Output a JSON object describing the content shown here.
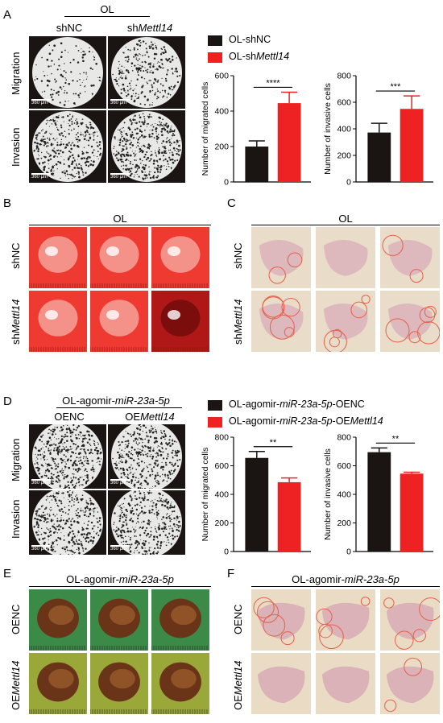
{
  "panels": {
    "A": {
      "label": "A",
      "group_title": "OL",
      "col_labels": [
        "shNC",
        "sh",
        "Mettl14"
      ],
      "row_labels": [
        "Migration",
        "Invasion"
      ],
      "scale_text": "360 μm",
      "legend": [
        {
          "text": "OL-shNC",
          "color": "#1a1412"
        },
        {
          "prefix": "OL-sh",
          "italic": "Mettl14",
          "color": "#ee2222"
        }
      ]
    },
    "B": {
      "label": "B",
      "group_title": "OL",
      "row_labels": [
        "shNC",
        "sh",
        "Mettl14"
      ]
    },
    "C": {
      "label": "C",
      "group_title": "OL",
      "row_labels": [
        "shNC",
        "sh",
        "Mettl14"
      ]
    },
    "D": {
      "label": "D",
      "group_title_prefix": "OL-agomir-",
      "group_title_italic": "miR-23a-5p",
      "col_labels": [
        "OENC",
        "OE",
        "Mettl14"
      ],
      "row_labels": [
        "Migration",
        "Invasion"
      ],
      "scale_text": "360 μm",
      "legend": [
        {
          "prefix": "OL-agomir-",
          "italic": "miR-23a-5p",
          "suffix": "-OENC",
          "color": "#1a1412"
        },
        {
          "prefix": "OL-agomir-",
          "italic": "miR-23a-5p",
          "suffix": "-OE",
          "italic2": "Mettl14",
          "color": "#ee2222"
        }
      ]
    },
    "E": {
      "label": "E",
      "group_title_prefix": "OL-agomir-",
      "group_title_italic": "miR-23a-5p",
      "row_labels": [
        "OENC",
        "OE",
        "Mettl14"
      ]
    },
    "F": {
      "label": "F",
      "group_title_prefix": "OL-agomir-",
      "group_title_italic": "miR-23a-5p",
      "row_labels": [
        "OENC",
        "OE",
        "Mettl14"
      ]
    }
  },
  "chart_data": [
    {
      "id": "A-migrated",
      "type": "bar",
      "categories": [
        "OL-shNC",
        "OL-shMettl14"
      ],
      "values": [
        200,
        445
      ],
      "errors": [
        32,
        62
      ],
      "ylabel": "Number of migrated cells",
      "ylim": [
        0,
        600
      ],
      "yticks": [
        0,
        200,
        400,
        600
      ],
      "significance": "****",
      "colors": [
        "#1a1412",
        "#ee2222"
      ]
    },
    {
      "id": "A-invasive",
      "type": "bar",
      "categories": [
        "OL-shNC",
        "OL-shMettl14"
      ],
      "values": [
        372,
        550
      ],
      "errors": [
        70,
        98
      ],
      "ylabel": "Number of invasive cells",
      "ylim": [
        0,
        800
      ],
      "yticks": [
        0,
        200,
        400,
        600,
        800
      ],
      "significance": "***",
      "colors": [
        "#1a1412",
        "#ee2222"
      ]
    },
    {
      "id": "D-migrated",
      "type": "bar",
      "categories": [
        "OENC",
        "OEMettl14"
      ],
      "values": [
        655,
        485
      ],
      "errors": [
        45,
        30
      ],
      "ylabel": "Number of migrated cells",
      "ylim": [
        0,
        800
      ],
      "yticks": [
        0,
        200,
        400,
        600,
        800
      ],
      "significance": "**",
      "colors": [
        "#1a1412",
        "#ee2222"
      ]
    },
    {
      "id": "D-invasive",
      "type": "bar",
      "categories": [
        "OENC",
        "OEMettl14"
      ],
      "values": [
        695,
        545
      ],
      "errors": [
        30,
        10
      ],
      "ylabel": "Number of invasive cells",
      "ylim": [
        0,
        800
      ],
      "yticks": [
        0,
        200,
        400,
        600,
        800
      ],
      "significance": "**",
      "colors": [
        "#1a1412",
        "#ee2222"
      ]
    }
  ]
}
